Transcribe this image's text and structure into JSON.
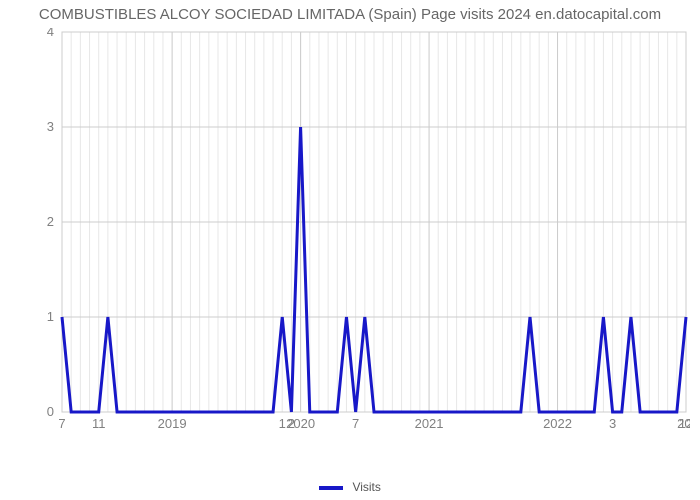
{
  "chart": {
    "type": "line",
    "title": "COMBUSTIBLES ALCOY SOCIEDAD LIMITADA (Spain) Page visits 2024 en.datocapital.com",
    "title_fontsize": 15,
    "title_color": "#666666",
    "background_color": "#ffffff",
    "grid_major_color": "#cccccc",
    "grid_minor_color": "#e7e7e7",
    "line_color": "#1818c8",
    "line_width": 3,
    "axis_label_color": "#808080",
    "tick_font_size": 13,
    "ylim": [
      0,
      4
    ],
    "ytick_step": 1,
    "yticks": [
      0,
      1,
      2,
      3,
      4
    ],
    "x_points_count": 69,
    "visits": [
      1,
      0,
      0,
      0,
      0,
      1,
      0,
      0,
      0,
      0,
      0,
      0,
      0,
      0,
      0,
      0,
      0,
      0,
      0,
      0,
      0,
      0,
      0,
      0,
      1,
      0,
      3,
      0,
      0,
      0,
      0,
      1,
      0,
      1,
      0,
      0,
      0,
      0,
      0,
      0,
      0,
      0,
      0,
      0,
      0,
      0,
      0,
      0,
      0,
      0,
      0,
      1,
      0,
      0,
      0,
      0,
      0,
      0,
      0,
      1,
      0,
      0,
      1,
      0,
      0,
      0,
      0,
      0,
      1
    ],
    "x_tick_labels": [
      {
        "pos": 0,
        "label": "7"
      },
      {
        "pos": 4,
        "label": "11"
      },
      {
        "pos": 12,
        "label": "2019"
      },
      {
        "pos": 24,
        "label": "1"
      },
      {
        "pos": 25,
        "label": "2"
      },
      {
        "pos": 26,
        "label": "2020"
      },
      {
        "pos": 32,
        "label": "7"
      },
      {
        "pos": 40,
        "label": "2021"
      },
      {
        "pos": 54,
        "label": "2022"
      },
      {
        "pos": 60,
        "label": "3"
      },
      {
        "pos": 68,
        "label": "12"
      },
      {
        "pos": 68.5,
        "label": "202"
      }
    ],
    "x_major_gridlines": [
      12,
      26,
      40,
      54,
      68
    ],
    "legend": {
      "label": "Visits",
      "swatch_color": "#1818c8"
    }
  }
}
